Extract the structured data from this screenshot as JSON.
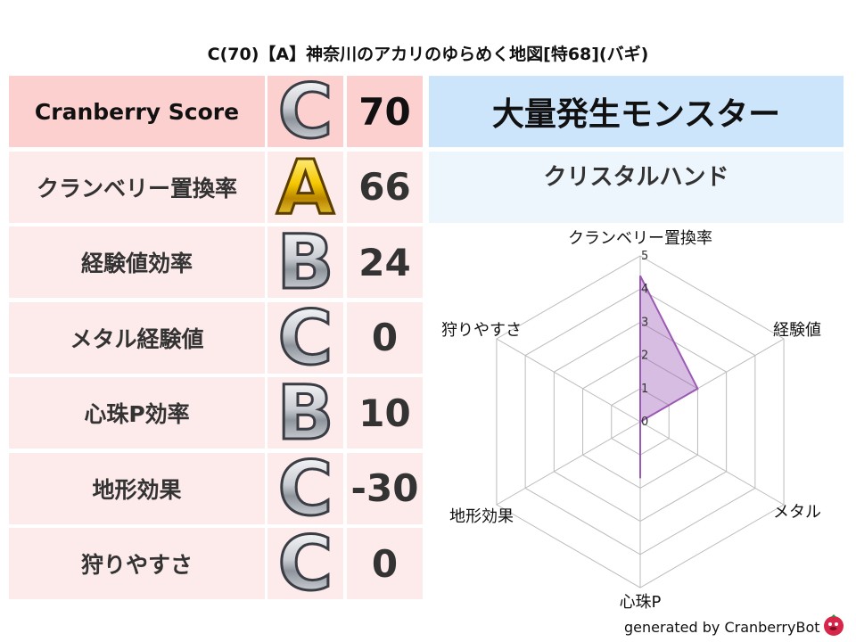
{
  "title": "C(70)【A】神奈川のアカリのゆらめく地図[特68](バギ)",
  "rows": [
    {
      "label": "Cranberry Score",
      "grade": "C",
      "value": "70"
    },
    {
      "label": "クランベリー置換率",
      "grade": "A",
      "value": "66"
    },
    {
      "label": "経験値効率",
      "grade": "B",
      "value": "24"
    },
    {
      "label": "メタル経験値",
      "grade": "C",
      "value": "0"
    },
    {
      "label": "心珠P効率",
      "grade": "B",
      "value": "10"
    },
    {
      "label": "地形効果",
      "grade": "C",
      "value": "-30"
    },
    {
      "label": "狩りやすさ",
      "grade": "C",
      "value": "0"
    }
  ],
  "monster": {
    "header": "大量発生モンスター",
    "name": "クリスタルハンド"
  },
  "chart_data": {
    "type": "radar",
    "axes": [
      "クランベリー置換率",
      "経験値",
      "メタル",
      "心珠P",
      "地形効果",
      "狩りやすさ"
    ],
    "values": [
      4.4,
      2.0,
      0,
      1.7,
      0,
      0
    ],
    "ticks": [
      "0",
      "1",
      "2",
      "3",
      "4",
      "5"
    ],
    "range": [
      0,
      5
    ],
    "color": "#9b59b6"
  },
  "footer": "generated by CranberryBot"
}
